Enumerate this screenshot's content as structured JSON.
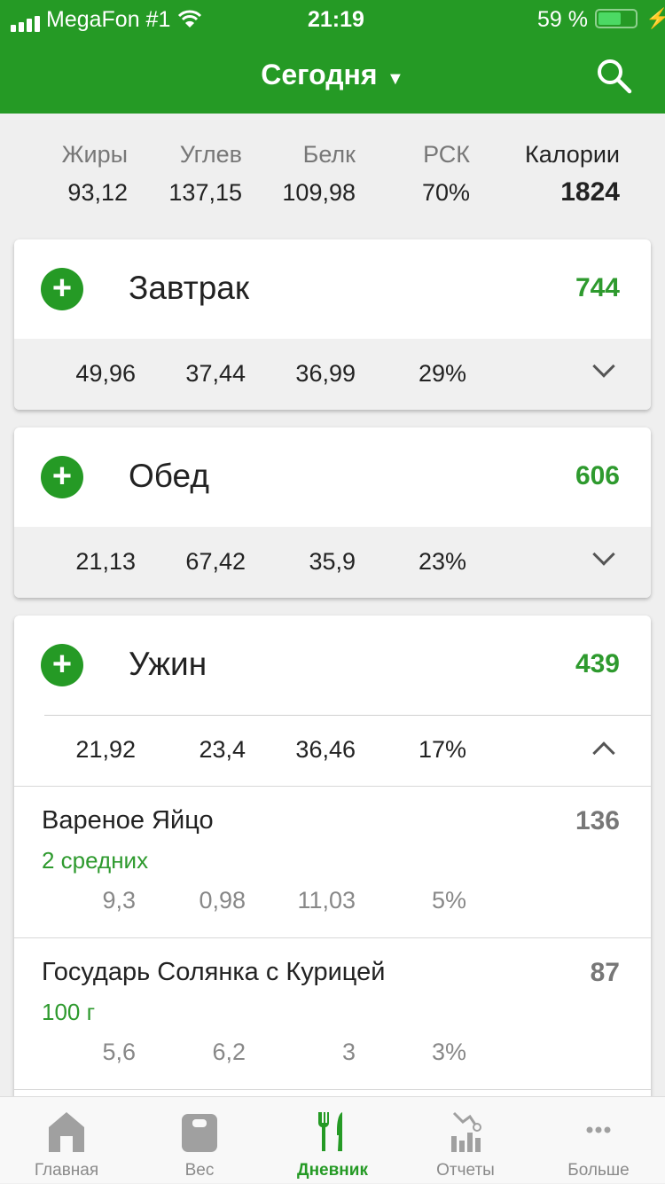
{
  "status_bar": {
    "carrier": "MegaFon #1",
    "time": "21:19",
    "battery": "59 %",
    "battery_level": 0.59
  },
  "header": {
    "title": "Сегодня",
    "search_icon": "search-icon"
  },
  "summary": {
    "labels": [
      "Жиры",
      "Углев",
      "Белк",
      "РСК",
      "Калории"
    ],
    "values": [
      "93,12",
      "137,15",
      "109,98",
      "70%",
      "1824"
    ]
  },
  "meals": [
    {
      "name": "Завтрак",
      "calories": "744",
      "macros": [
        "49,96",
        "37,44",
        "36,99",
        "29%"
      ],
      "expanded": false
    },
    {
      "name": "Обед",
      "calories": "606",
      "macros": [
        "21,13",
        "67,42",
        "35,9",
        "23%"
      ],
      "expanded": false
    },
    {
      "name": "Ужин",
      "calories": "439",
      "macros": [
        "21,92",
        "23,4",
        "36,46",
        "17%"
      ],
      "expanded": true,
      "items": [
        {
          "name": "Вареное Яйцо",
          "serving": "2 средних",
          "calories": "136",
          "macros": [
            "9,3",
            "0,98",
            "11,03",
            "5%"
          ]
        },
        {
          "name": "Государь Солянка с Курицей",
          "serving": "100 г",
          "calories": "87",
          "macros": [
            "5,6",
            "6,2",
            "3",
            "3%"
          ]
        }
      ]
    }
  ],
  "tabbar": {
    "active": "Дневник",
    "accent": "#259a25",
    "items": [
      {
        "label": "Главная"
      },
      {
        "label": "Вес"
      },
      {
        "label": "Дневник"
      },
      {
        "label": "Отчеты"
      },
      {
        "label": "Больше"
      }
    ]
  }
}
